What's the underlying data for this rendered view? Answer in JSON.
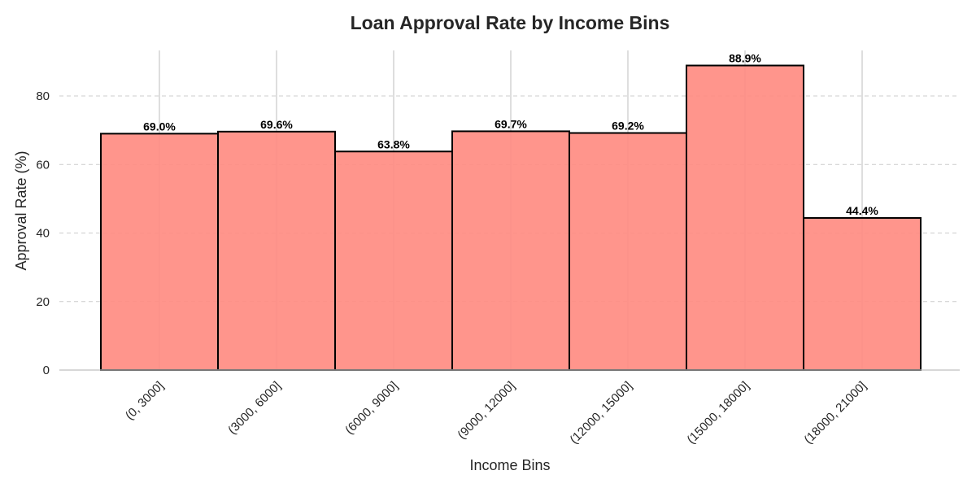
{
  "chart_data": {
    "type": "bar",
    "title": "Loan Approval Rate by Income Bins",
    "xlabel": "Income Bins",
    "ylabel": "Approval Rate (%)",
    "categories": [
      "(0, 3000]",
      "(3000, 6000]",
      "(6000, 9000]",
      "(9000, 12000]",
      "(12000, 15000]",
      "(15000, 18000]",
      "(18000, 21000]"
    ],
    "values": [
      69.0,
      69.6,
      63.8,
      69.7,
      69.2,
      88.9,
      44.4
    ],
    "data_labels": [
      "69.0%",
      "69.6%",
      "63.8%",
      "69.7%",
      "69.2%",
      "88.9%",
      "44.4%"
    ],
    "ylim": [
      0,
      93.3
    ],
    "yticks": [
      0,
      20,
      40,
      60,
      80
    ],
    "grid": true,
    "colors": {
      "bar_fill": "#ff8c82",
      "bar_edge": "#000000",
      "grid": "#cccccc"
    }
  }
}
